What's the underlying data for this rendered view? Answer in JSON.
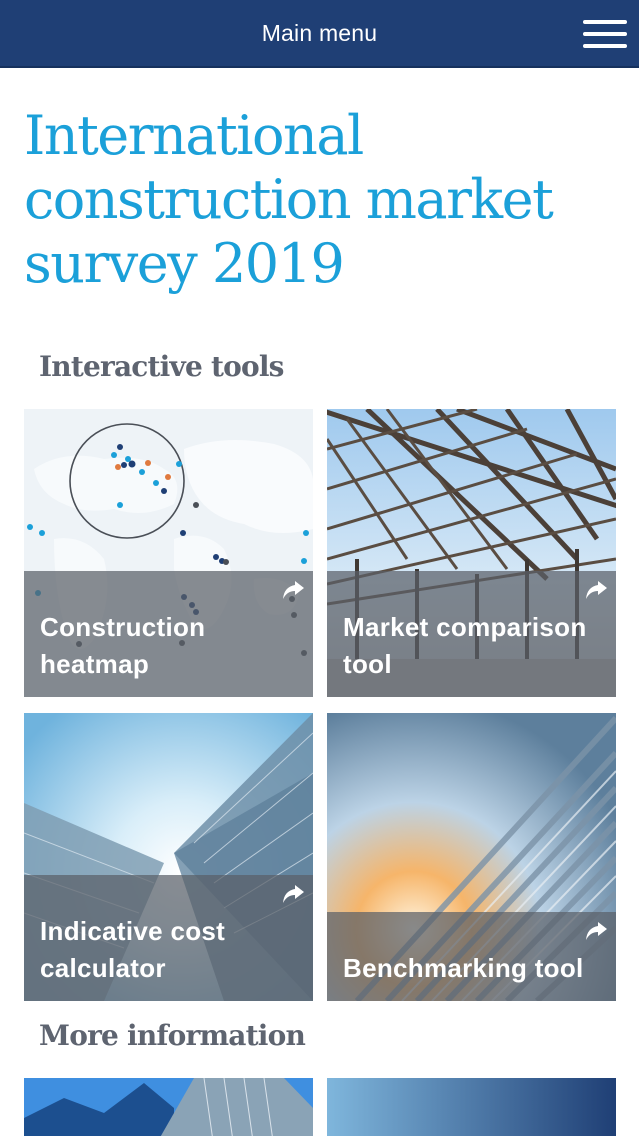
{
  "header": {
    "menu_label": "Main menu",
    "menu_icon": "hamburger-icon",
    "background_color": "#1f3f75"
  },
  "page": {
    "title": "International construction market survey 2019",
    "title_color": "#1ba0d9"
  },
  "interactive_tools": {
    "heading": "Interactive tools",
    "tiles": [
      {
        "label": "Construction heatmap",
        "icon": "share-arrow-icon"
      },
      {
        "label": "Market comparison tool",
        "icon": "share-arrow-icon"
      },
      {
        "label": "Indicative cost calculator",
        "icon": "share-arrow-icon"
      },
      {
        "label": "Benchmarking tool",
        "icon": "share-arrow-icon"
      }
    ]
  },
  "more_information": {
    "heading": "More information"
  }
}
